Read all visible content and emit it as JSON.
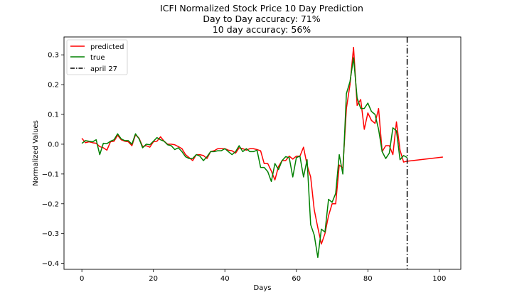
{
  "chart_data": {
    "type": "line",
    "title_lines": [
      "ICFI Normalized Stock Price 10 Day Prediction",
      "Day to Day accuracy: 71%",
      "10 day accuracy: 56%"
    ],
    "xlabel": "Days",
    "ylabel": "Normalized Values",
    "xlim": [
      -5,
      106
    ],
    "ylim": [
      -0.42,
      0.36
    ],
    "xticks": [
      0,
      20,
      40,
      60,
      80,
      100
    ],
    "yticks": [
      -0.4,
      -0.3,
      -0.2,
      -0.1,
      0.0,
      0.1,
      0.2,
      0.3
    ],
    "ytick_labels": [
      "−0.4",
      "−0.3",
      "−0.2",
      "−0.1",
      "0.0",
      "0.1",
      "0.2",
      "0.3"
    ],
    "grid": false,
    "legend_position": "upper-left",
    "series": [
      {
        "name": "predicted",
        "color": "#ff0000",
        "x": [
          0,
          1,
          2,
          3,
          4,
          5,
          6,
          7,
          8,
          9,
          10,
          11,
          12,
          13,
          14,
          15,
          16,
          17,
          18,
          19,
          20,
          21,
          22,
          23,
          24,
          25,
          26,
          27,
          28,
          29,
          30,
          31,
          32,
          33,
          34,
          35,
          36,
          37,
          38,
          39,
          40,
          41,
          42,
          43,
          44,
          45,
          46,
          47,
          48,
          49,
          50,
          51,
          52,
          53,
          54,
          55,
          56,
          57,
          58,
          59,
          60,
          61,
          62,
          63,
          64,
          65,
          66,
          67,
          68,
          69,
          70,
          71,
          72,
          73,
          74,
          75,
          76,
          77,
          78,
          79,
          80,
          81,
          82,
          83,
          84,
          85,
          86,
          87,
          88,
          89,
          90,
          91,
          101
        ],
        "y": [
          0.02,
          0.005,
          0.008,
          0.005,
          0.003,
          -0.008,
          -0.012,
          -0.02,
          0.008,
          0.01,
          0.03,
          0.015,
          0.01,
          0.008,
          -0.005,
          0.032,
          0.02,
          -0.008,
          -0.005,
          -0.01,
          0.008,
          0.01,
          0.025,
          0.01,
          0.0,
          0.0,
          -0.002,
          -0.008,
          -0.015,
          -0.035,
          -0.045,
          -0.055,
          -0.035,
          -0.035,
          -0.038,
          -0.048,
          -0.025,
          -0.022,
          -0.015,
          -0.015,
          -0.015,
          -0.02,
          -0.022,
          -0.03,
          -0.012,
          -0.015,
          -0.02,
          -0.015,
          -0.015,
          -0.018,
          -0.022,
          -0.065,
          -0.065,
          -0.09,
          -0.12,
          -0.075,
          -0.055,
          -0.055,
          -0.04,
          -0.05,
          -0.04,
          -0.04,
          -0.01,
          -0.07,
          -0.11,
          -0.22,
          -0.28,
          -0.335,
          -0.3,
          -0.24,
          -0.2,
          -0.2,
          -0.07,
          -0.08,
          0.12,
          0.2,
          0.325,
          0.13,
          0.15,
          0.05,
          0.105,
          0.08,
          0.07,
          0.12,
          -0.025,
          -0.005,
          -0.005,
          -0.035,
          0.075,
          -0.02,
          -0.06,
          -0.057,
          -0.043
        ]
      },
      {
        "name": "true",
        "color": "#008000",
        "x": [
          0,
          1,
          2,
          3,
          4,
          5,
          6,
          7,
          8,
          9,
          10,
          11,
          12,
          13,
          14,
          15,
          16,
          17,
          18,
          19,
          20,
          21,
          22,
          23,
          24,
          25,
          26,
          27,
          28,
          29,
          30,
          31,
          32,
          33,
          34,
          35,
          36,
          37,
          38,
          39,
          40,
          41,
          42,
          43,
          44,
          45,
          46,
          47,
          48,
          49,
          50,
          51,
          52,
          53,
          54,
          55,
          56,
          57,
          58,
          59,
          60,
          61,
          62,
          63,
          64,
          65,
          66,
          67,
          68,
          69,
          70,
          71,
          72,
          73,
          74,
          75,
          76,
          77,
          78,
          79,
          80,
          81,
          82,
          83,
          84,
          85,
          86,
          87,
          88,
          89,
          90,
          91
        ],
        "y": [
          0.003,
          0.012,
          0.01,
          0.008,
          0.015,
          -0.035,
          0.003,
          0.002,
          0.01,
          0.015,
          0.035,
          0.018,
          0.012,
          0.012,
          0.0,
          0.035,
          0.018,
          -0.012,
          0.0,
          -0.002,
          0.01,
          0.022,
          0.015,
          0.01,
          -0.002,
          -0.005,
          -0.018,
          -0.012,
          -0.025,
          -0.042,
          -0.048,
          -0.048,
          -0.035,
          -0.04,
          -0.055,
          -0.042,
          -0.025,
          -0.025,
          -0.022,
          -0.022,
          -0.015,
          -0.025,
          -0.035,
          -0.025,
          -0.005,
          -0.025,
          -0.015,
          -0.025,
          -0.025,
          -0.02,
          -0.078,
          -0.078,
          -0.092,
          -0.125,
          -0.065,
          -0.085,
          -0.055,
          -0.042,
          -0.045,
          -0.11,
          -0.045,
          -0.04,
          -0.11,
          -0.052,
          -0.27,
          -0.305,
          -0.38,
          -0.285,
          -0.295,
          -0.185,
          -0.195,
          -0.165,
          -0.035,
          -0.1,
          0.17,
          0.21,
          0.29,
          0.155,
          0.12,
          0.12,
          0.138,
          0.11,
          0.1,
          0.05,
          -0.025,
          -0.048,
          -0.03,
          0.055,
          0.045,
          -0.052,
          -0.038,
          -0.045
        ]
      }
    ],
    "vline": {
      "x": 91,
      "label": "april 27",
      "color": "#000000",
      "style": "dash-dot"
    }
  }
}
